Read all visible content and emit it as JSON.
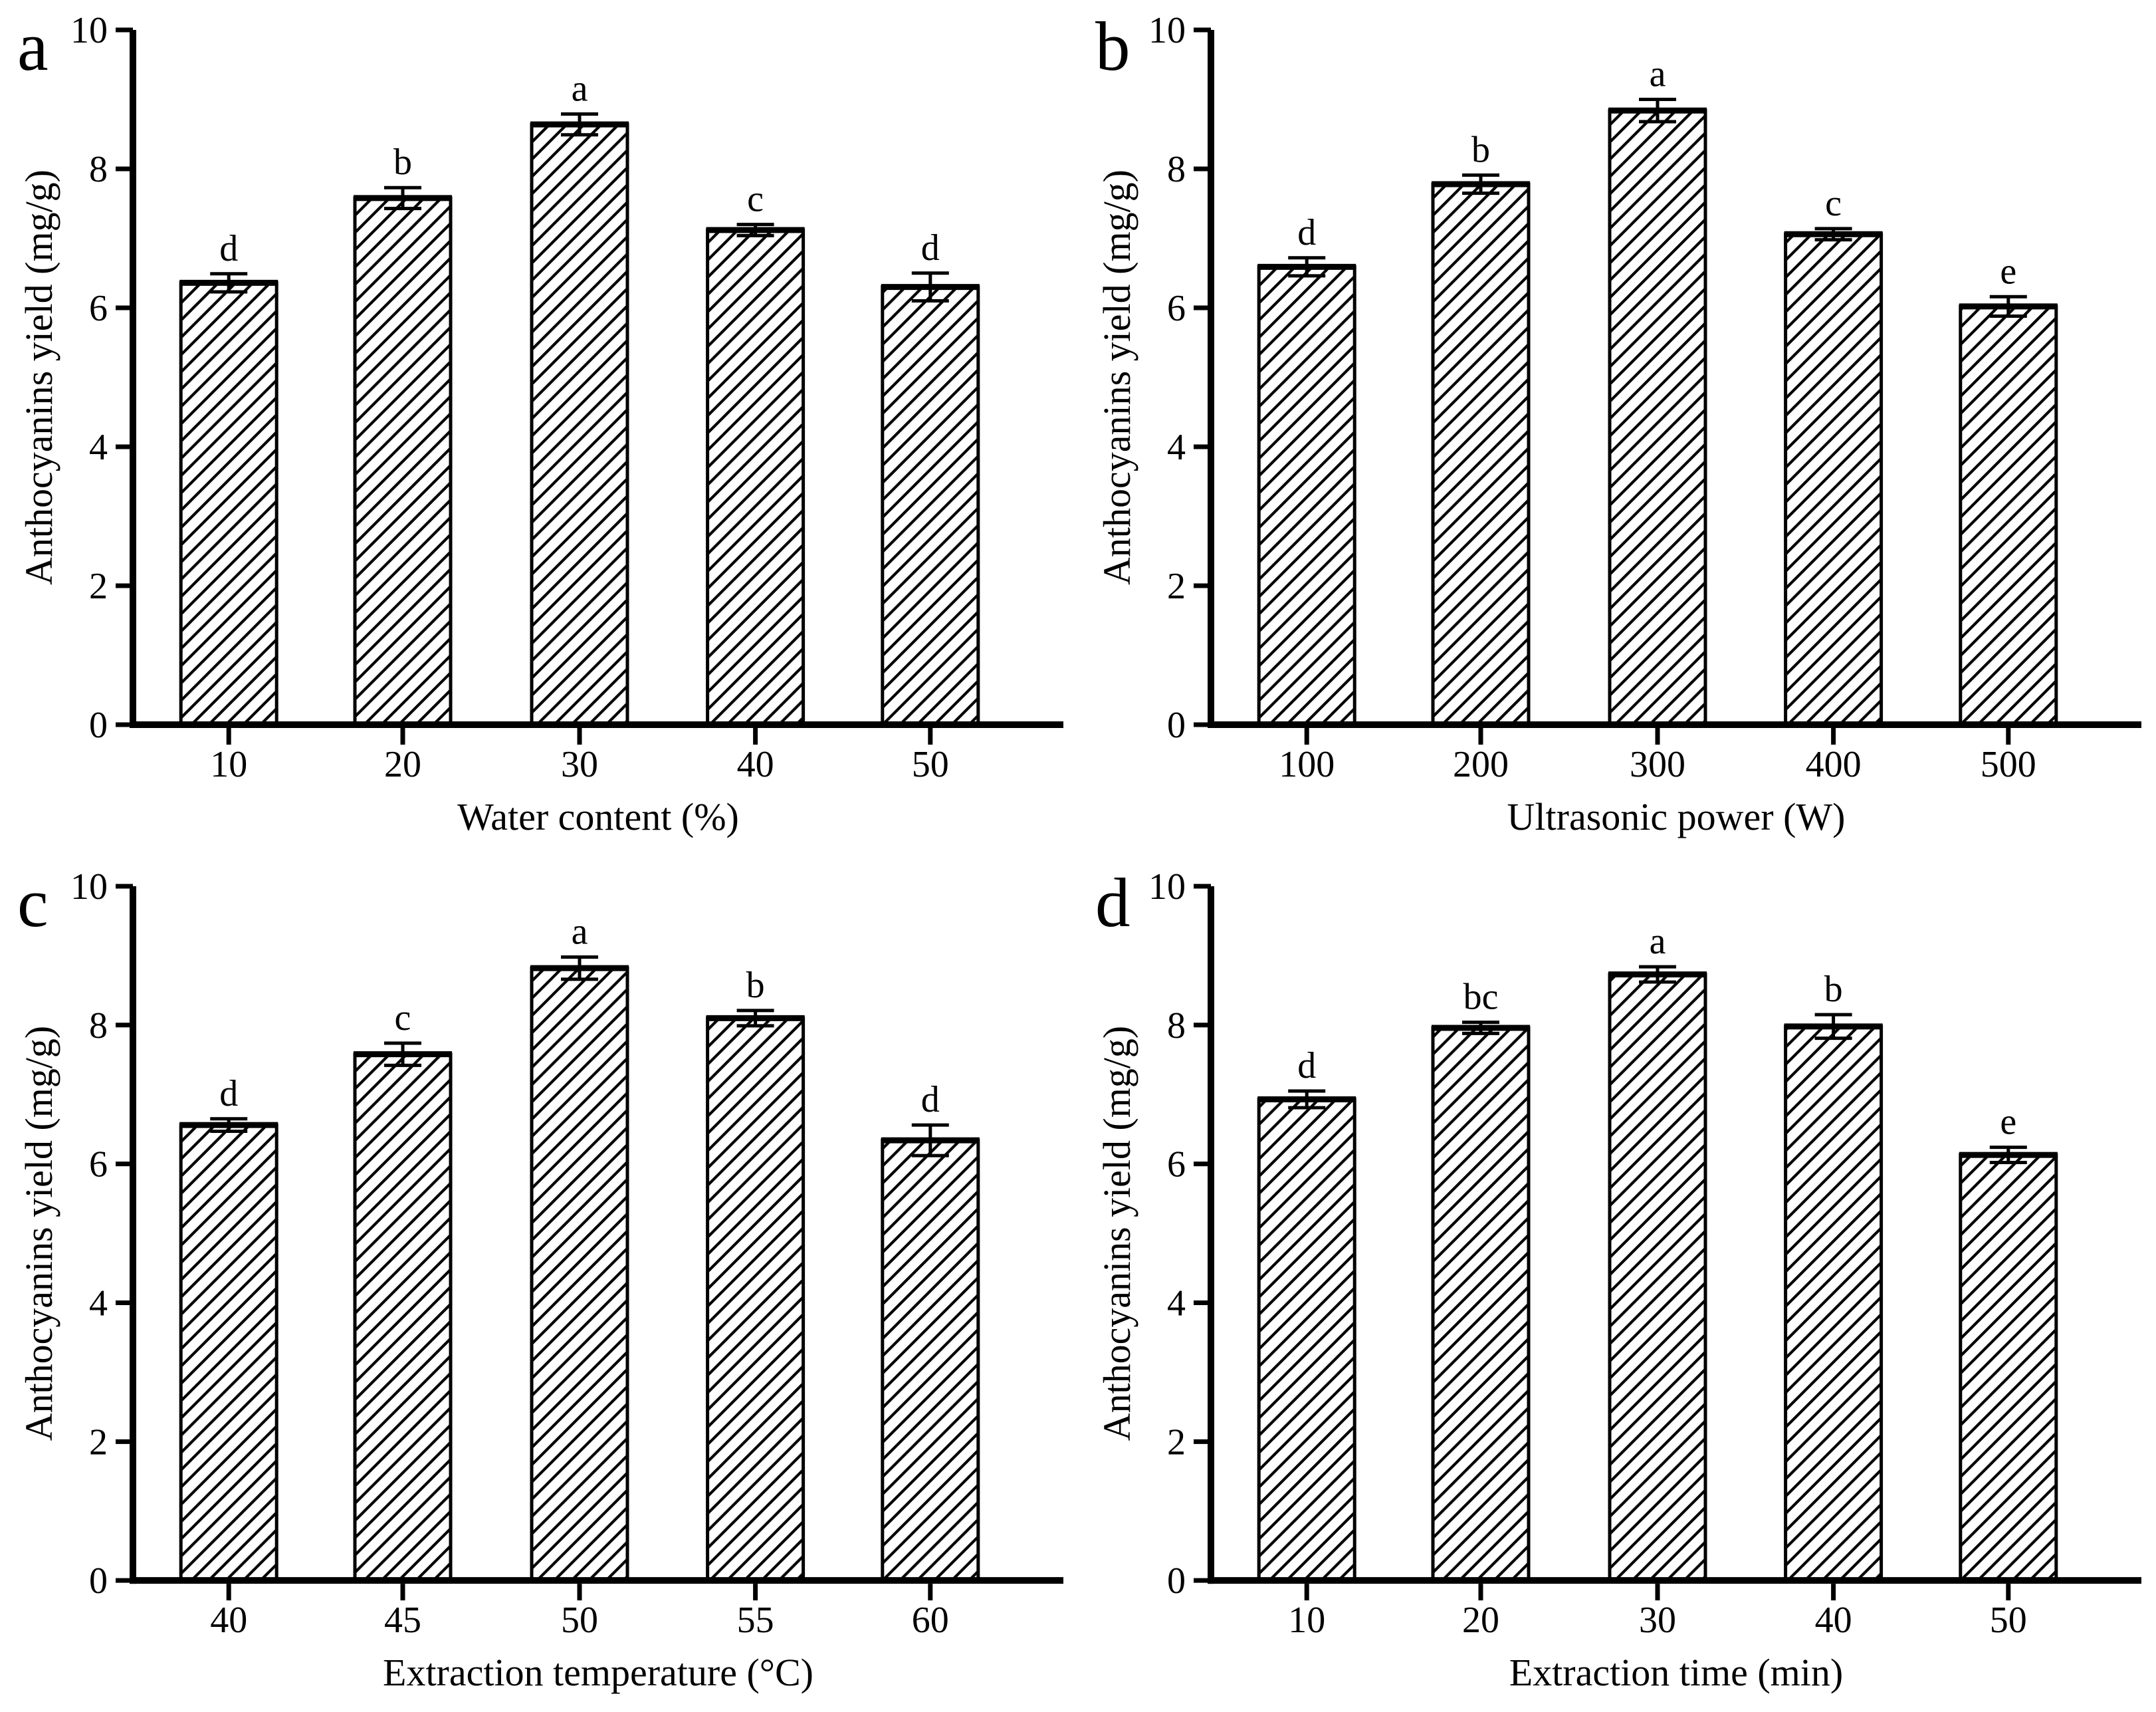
{
  "figure": {
    "background": "#ffffff",
    "ink_color": "#000000",
    "shared_ylabel": "Anthocyanins yield (mg/g)",
    "panel_letters": [
      "a",
      "b",
      "c",
      "d"
    ]
  },
  "chart_data": [
    {
      "type": "bar",
      "panel_label": "a",
      "title": "",
      "xlabel": "Water content (%)",
      "ylabel": "Anthocyanins yield (mg/g)",
      "categories": [
        "10",
        "20",
        "30",
        "40",
        "50"
      ],
      "values": [
        6.36,
        7.58,
        8.64,
        7.12,
        6.3
      ],
      "errors": [
        0.13,
        0.15,
        0.15,
        0.08,
        0.2
      ],
      "sig_letters": [
        "d",
        "b",
        "a",
        "c",
        "d"
      ],
      "ylim": [
        0,
        10
      ],
      "yticks": [
        0,
        2,
        4,
        6,
        8,
        10
      ],
      "grid": false,
      "bar_style": "diagonal-hatch",
      "legend": "none"
    },
    {
      "type": "bar",
      "panel_label": "b",
      "title": "",
      "xlabel": "Ultrasonic power (W)",
      "ylabel": "Anthocyanins yield (mg/g)",
      "categories": [
        "100",
        "200",
        "300",
        "400",
        "500"
      ],
      "values": [
        6.59,
        7.78,
        8.84,
        7.06,
        6.02
      ],
      "errors": [
        0.13,
        0.13,
        0.16,
        0.08,
        0.14
      ],
      "sig_letters": [
        "d",
        "b",
        "a",
        "c",
        "e"
      ],
      "ylim": [
        0,
        10
      ],
      "yticks": [
        0,
        2,
        4,
        6,
        8,
        10
      ],
      "grid": false,
      "bar_style": "diagonal-hatch",
      "legend": "none"
    },
    {
      "type": "bar",
      "panel_label": "c",
      "title": "",
      "xlabel": "Extraction temperature (°C)",
      "ylabel": "Anthocyanins yield (mg/g)",
      "categories": [
        "40",
        "45",
        "50",
        "55",
        "60"
      ],
      "values": [
        6.56,
        7.58,
        8.82,
        8.1,
        6.34
      ],
      "errors": [
        0.09,
        0.16,
        0.16,
        0.11,
        0.22
      ],
      "sig_letters": [
        "d",
        "c",
        "a",
        "b",
        "d"
      ],
      "ylim": [
        0,
        10
      ],
      "yticks": [
        0,
        2,
        4,
        6,
        8,
        10
      ],
      "grid": false,
      "bar_style": "diagonal-hatch",
      "legend": "none"
    },
    {
      "type": "bar",
      "panel_label": "d",
      "title": "",
      "xlabel": "Extraction time (min)",
      "ylabel": "Anthocyanins yield (mg/g)",
      "categories": [
        "10",
        "20",
        "30",
        "40",
        "50"
      ],
      "values": [
        6.93,
        7.96,
        8.73,
        7.98,
        6.13
      ],
      "errors": [
        0.12,
        0.08,
        0.11,
        0.17,
        0.11
      ],
      "sig_letters": [
        "d",
        "bc",
        "a",
        "b",
        "e"
      ],
      "ylim": [
        0,
        10
      ],
      "yticks": [
        0,
        2,
        4,
        6,
        8,
        10
      ],
      "grid": false,
      "bar_style": "diagonal-hatch",
      "legend": "none"
    }
  ]
}
